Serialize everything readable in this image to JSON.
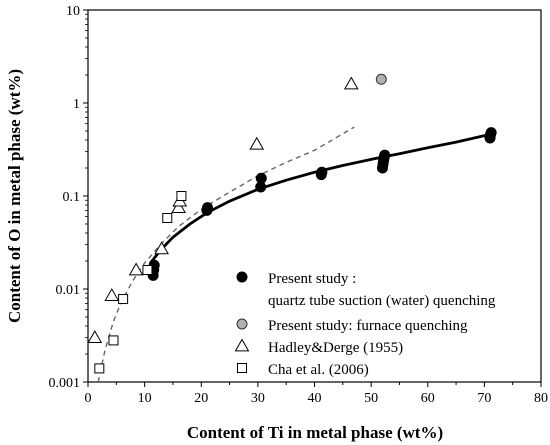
{
  "chart_data": {
    "type": "scatter",
    "xlabel": "Content of Ti in metal phase (wt%)",
    "ylabel": "Content of O in metal phase (wt%)",
    "xlim": [
      0,
      80
    ],
    "ylim": [
      0.001,
      10
    ],
    "yscale": "log",
    "grid": false,
    "legend_position": "bottom-right",
    "x_ticks": [
      0,
      10,
      20,
      30,
      40,
      50,
      60,
      70,
      80
    ],
    "x_tick_labels": [
      "0",
      "10",
      "20",
      "30",
      "40",
      "50",
      "60",
      "70",
      "80"
    ],
    "y_ticks": [
      0.001,
      0.01,
      0.1,
      1,
      10
    ],
    "y_tick_labels": [
      "0.001",
      "0.01",
      "0.1",
      "1",
      "10"
    ],
    "series": [
      {
        "name": "Present study :",
        "name_line2": "quartz tube suction (water) quenching",
        "marker": "filled-circle",
        "color": "#000000",
        "points": [
          [
            11.5,
            0.014
          ],
          [
            11.6,
            0.016
          ],
          [
            11.7,
            0.018
          ],
          [
            21,
            0.07
          ],
          [
            21.1,
            0.075
          ],
          [
            30.5,
            0.125
          ],
          [
            30.6,
            0.155
          ],
          [
            41.2,
            0.17
          ],
          [
            41.3,
            0.18
          ],
          [
            52,
            0.2
          ],
          [
            52.1,
            0.22
          ],
          [
            52.2,
            0.24
          ],
          [
            52.3,
            0.26
          ],
          [
            52.4,
            0.275
          ],
          [
            71,
            0.42
          ],
          [
            71.1,
            0.46
          ],
          [
            71.2,
            0.48
          ]
        ]
      },
      {
        "name": "Present study: furnace quenching",
        "marker": "gray-circle",
        "color": "#b0b0b0",
        "points": [
          [
            51.8,
            1.8
          ]
        ]
      },
      {
        "name": "Hadley&Derge (1955)",
        "marker": "open-triangle",
        "color": "#000000",
        "points": [
          [
            1.2,
            0.003
          ],
          [
            4.2,
            0.0085
          ],
          [
            8.5,
            0.016
          ],
          [
            13,
            0.027
          ],
          [
            16,
            0.075
          ],
          [
            16.2,
            0.088
          ],
          [
            29.8,
            0.36
          ],
          [
            46.5,
            1.6
          ]
        ]
      },
      {
        "name": "Cha et al. (2006)",
        "marker": "open-square",
        "color": "#000000",
        "points": [
          [
            2,
            0.0014
          ],
          [
            4.5,
            0.0028
          ],
          [
            6.2,
            0.0078
          ],
          [
            10.5,
            0.016
          ],
          [
            14,
            0.058
          ],
          [
            16.5,
            0.1
          ]
        ]
      }
    ],
    "fit_curves": [
      {
        "style": "solid",
        "color": "#000000",
        "x": [
          11,
          13,
          15,
          18,
          21,
          25,
          30,
          35,
          40,
          45,
          50,
          55,
          60,
          65,
          71
        ],
        "y": [
          0.019,
          0.027,
          0.036,
          0.05,
          0.066,
          0.088,
          0.118,
          0.148,
          0.18,
          0.213,
          0.248,
          0.285,
          0.33,
          0.38,
          0.46
        ]
      },
      {
        "style": "dashed",
        "color": "#666666",
        "x": [
          1.8,
          3,
          4.5,
          6,
          8,
          10,
          13,
          16,
          20,
          25,
          30,
          35,
          40,
          47
        ],
        "y": [
          0.001,
          0.0022,
          0.0045,
          0.0075,
          0.0125,
          0.019,
          0.031,
          0.047,
          0.072,
          0.11,
          0.165,
          0.23,
          0.31,
          0.55
        ]
      }
    ]
  }
}
